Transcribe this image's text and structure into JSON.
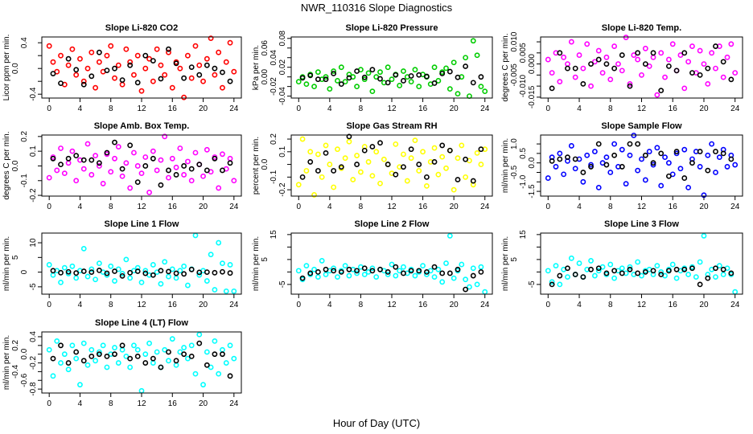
{
  "title": "NWR_110316  Slope Diagnostics",
  "xlabel": "Hour of Day (UTC)",
  "chart_data": [
    {
      "type": "scatter",
      "title": "Slope Li-820 CO2",
      "ylabel": "Licor ppm per min.",
      "color": "#ff0000",
      "xlim": [
        -0.96,
        24.96
      ],
      "ylim": [
        -0.46,
        0.49
      ],
      "xticks": [
        "0",
        "4",
        "8",
        "12",
        "16",
        "20",
        "24"
      ],
      "yticks": [
        -0.4,
        -0.2,
        0.0,
        0.2,
        0.4
      ],
      "ytick_labels": [
        "-0.4",
        "",
        "0.0",
        "",
        "0.4"
      ],
      "series_x_start": 0,
      "series_x_step": 0.5,
      "series": [
        0.35,
        0.1,
        -0.05,
        0.2,
        -0.25,
        0.05,
        0.3,
        -0.1,
        0.15,
        -0.2,
        0.0,
        0.25,
        -0.3,
        0.1,
        -0.05,
        0.2,
        0.35,
        -0.15,
        0.05,
        -0.25,
        0.3,
        0.1,
        -0.1,
        0.2,
        -0.35,
        0.0,
        0.15,
        -0.2,
        0.3,
        0.05,
        -0.1,
        0.25,
        -0.3,
        0.1,
        0.0,
        -0.45,
        0.2,
        -0.15,
        0.35,
        0.05,
        -0.2,
        0.15,
        0.47,
        -0.1,
        0.25,
        -0.3,
        0.1,
        0.4,
        -0.05
      ],
      "hourly_x_start": 0.5,
      "hourly_x_step": 1,
      "hourly": [
        -0.08,
        -0.23,
        0.15,
        -0.02,
        -0.25,
        -0.12,
        0.25,
        -0.03,
        0.0,
        -0.18,
        0.05,
        -0.22,
        0.2,
        0.12,
        -0.16,
        0.3,
        0.08,
        -0.15,
        0.02,
        -0.1,
        0.05,
        0.0,
        -0.06,
        -0.2
      ]
    },
    {
      "type": "scatter",
      "title": "Slope Li-820 Pressure",
      "ylabel": "kPa per min.",
      "color": "#00cc00",
      "xlim": [
        -0.96,
        24.96
      ],
      "ylim": [
        -0.044,
        0.083
      ],
      "xticks": [
        "0",
        "4",
        "8",
        "12",
        "16",
        "20",
        "24"
      ],
      "yticks": [
        -0.04,
        -0.02,
        0.0,
        0.02,
        0.04,
        0.06,
        0.08
      ],
      "ytick_labels": [
        "-0.04",
        "-0.02",
        "0.00",
        "0.02",
        "0.04",
        "0.06",
        "0.08"
      ],
      "series_x_start": 0,
      "series_x_step": 0.5,
      "series": [
        -0.01,
        0.0,
        -0.015,
        0.005,
        -0.02,
        0.01,
        -0.005,
        0.0,
        -0.025,
        0.012,
        -0.008,
        0.02,
        -0.01,
        0.005,
        0.0,
        -0.02,
        0.015,
        -0.005,
        0.008,
        -0.03,
        0.0,
        0.01,
        -0.012,
        0.02,
        -0.005,
        0.005,
        -0.018,
        0.012,
        0.0,
        -0.01,
        0.015,
        -0.02,
        0.005,
        0.0,
        -0.015,
        0.02,
        -0.008,
        0.01,
        0.018,
        -0.025,
        0.03,
        -0.035,
        0.0,
        0.04,
        -0.04,
        0.075,
        0.045,
        -0.02,
        -0.03
      ],
      "hourly_x_start": 0.5,
      "hourly_x_step": 1,
      "hourly": [
        -0.002,
        0.003,
        -0.005,
        -0.005,
        0.007,
        -0.015,
        -0.002,
        0.012,
        -0.001,
        0.015,
        -0.004,
        -0.012,
        0.004,
        -0.008,
        0.002,
        0.004,
        0.001,
        -0.013,
        0.007,
        0.011,
        -0.001,
        0.022,
        -0.012,
        0.0
      ]
    },
    {
      "type": "scatter",
      "title": "Slope Li-820 Temp.",
      "ylabel": "degrees C per min.",
      "color": "#ff00ff",
      "xlim": [
        -0.96,
        24.96
      ],
      "ylim": [
        -0.0154,
        0.0122
      ],
      "xticks": [
        "0",
        "4",
        "8",
        "12",
        "16",
        "20",
        "24"
      ],
      "yticks": [
        -0.015,
        -0.01,
        -0.005,
        0.0,
        0.005,
        0.01
      ],
      "ytick_labels": [
        "-0.015",
        "-0.010",
        "-0.005",
        "0.000",
        "0.005",
        "0.010"
      ],
      "series_x_start": 0,
      "series_x_step": 0.5,
      "series": [
        0.002,
        -0.004,
        0.005,
        -0.008,
        0.003,
        0.0,
        0.01,
        -0.006,
        0.004,
        -0.002,
        0.009,
        -0.01,
        0.001,
        0.006,
        -0.004,
        0.003,
        -0.007,
        0.008,
        0.0,
        -0.003,
        0.012,
        -0.009,
        0.004,
        0.002,
        -0.005,
        0.007,
        -0.001,
        0.003,
        -0.014,
        0.005,
        -0.006,
        0.002,
        0.009,
        -0.003,
        0.004,
        -0.011,
        0.001,
        0.008,
        -0.004,
        0.006,
        0.0,
        -0.009,
        0.005,
        -0.002,
        0.008,
        -0.006,
        0.003,
        0.009,
        -0.004
      ],
      "hourly_x_start": 0.5,
      "hourly_x_step": 1,
      "hourly": [
        -0.011,
        0.005,
        -0.002,
        -0.002,
        -0.009,
        0.0,
        0.002,
        0.0,
        -0.002,
        0.004,
        -0.01,
        0.005,
        0.0,
        0.005,
        -0.012,
        -0.001,
        -0.003,
        0.005,
        -0.004,
        -0.005,
        -0.002,
        0.008,
        0.001,
        -0.007
      ]
    },
    {
      "type": "scatter",
      "title": "Slope Amb. Box Temp.",
      "ylabel": "degrees C per min.",
      "color": "#ff00ff",
      "xlim": [
        -0.96,
        24.96
      ],
      "ylim": [
        -0.205,
        0.21
      ],
      "xticks": [
        "0",
        "4",
        "8",
        "12",
        "16",
        "20",
        "24"
      ],
      "yticks": [
        -0.2,
        -0.1,
        0.0,
        0.1,
        0.2
      ],
      "ytick_labels": [
        "-0.2",
        "-0.1",
        "0.0",
        "0.1",
        "0.2"
      ],
      "series_x_start": 0,
      "series_x_step": 0.5,
      "series": [
        -0.08,
        0.06,
        -0.03,
        0.12,
        -0.05,
        0.02,
        0.1,
        -0.1,
        0.04,
        -0.02,
        0.15,
        -0.06,
        0.07,
        0.0,
        -0.12,
        0.08,
        -0.04,
        0.05,
        0.13,
        -0.07,
        0.02,
        -0.15,
        0.09,
        0.0,
        -0.05,
        0.06,
        -0.18,
        0.1,
        -0.03,
        0.04,
        0.2,
        -0.08,
        0.05,
        -0.01,
        0.12,
        -0.06,
        0.03,
        -0.1,
        0.09,
        0.01,
        -0.07,
        0.11,
        -0.04,
        0.06,
        -0.15,
        0.08,
        -0.02,
        0.05,
        -0.1
      ],
      "hourly_x_start": 0.5,
      "hourly_x_step": 1,
      "hourly": [
        0.05,
        0.01,
        0.05,
        0.07,
        0.04,
        0.04,
        0.02,
        0.09,
        0.16,
        -0.02,
        0.14,
        -0.11,
        0.0,
        0.05,
        -0.13,
        -0.03,
        -0.06,
        0.0,
        -0.02,
        0.01,
        -0.03,
        0.05,
        -0.03,
        0.02
      ]
    },
    {
      "type": "scatter",
      "title": "Slope Gas Stream RH",
      "ylabel": "percent per min.",
      "color": "#ffff00",
      "xlim": [
        -0.96,
        24.96
      ],
      "ylim": [
        -0.25,
        0.232
      ],
      "xticks": [
        "0",
        "4",
        "8",
        "12",
        "16",
        "20",
        "24"
      ],
      "yticks": [
        -0.2,
        -0.1,
        0.0,
        0.1,
        0.2
      ],
      "ytick_labels": [
        "-0.2",
        "-0.1",
        "0.0",
        "0.1",
        "0.2"
      ],
      "series_x_start": 0,
      "series_x_step": 0.5,
      "series": [
        -0.16,
        0.2,
        -0.05,
        0.1,
        -0.24,
        0.08,
        -0.1,
        0.15,
        0.0,
        -0.18,
        0.12,
        -0.03,
        0.05,
        0.18,
        -0.12,
        0.07,
        -0.06,
        0.14,
        0.02,
        -0.09,
        0.1,
        -0.15,
        0.04,
        0.0,
        -0.07,
        0.16,
        -0.02,
        0.08,
        -0.13,
        0.05,
        0.19,
        -0.05,
        0.1,
        -0.17,
        0.02,
        0.13,
        -0.08,
        0.06,
        -0.03,
        0.11,
        -0.2,
        0.05,
        0.15,
        -0.1,
        0.03,
        -0.16,
        0.09,
        0.0,
        0.12
      ],
      "hourly_x_start": 0.5,
      "hourly_x_step": 1,
      "hourly": [
        -0.1,
        0.02,
        -0.05,
        0.09,
        -0.05,
        -0.02,
        0.22,
        0.0,
        0.11,
        0.14,
        0.17,
        0.0,
        -0.08,
        -0.02,
        0.12,
        0.0,
        -0.1,
        0.02,
        0.15,
        0.11,
        -0.12,
        0.04,
        -0.13,
        0.12
      ]
    },
    {
      "type": "scatter",
      "title": "Slope Sample Flow",
      "ylabel": "ml/min per min.",
      "color": "#0000ff",
      "xlim": [
        -0.96,
        24.96
      ],
      "ylim": [
        -1.75,
        1.47
      ],
      "xticks": [
        "0",
        "4",
        "8",
        "12",
        "16",
        "20",
        "24"
      ],
      "yticks": [
        -1.5,
        -1.0,
        -0.5,
        0.0,
        0.5,
        1.0
      ],
      "ytick_labels": [
        "-1.5",
        "-1.0",
        "-0.5",
        "0.0",
        "0.5",
        "1.0"
      ],
      "series_x_start": 0,
      "series_x_step": 0.5,
      "series": [
        -0.8,
        0.3,
        -0.2,
        0.5,
        -0.6,
        0.1,
        0.9,
        -0.3,
        0.2,
        -1.0,
        0.4,
        -0.1,
        0.6,
        -1.3,
        0.0,
        0.3,
        -0.5,
        1.0,
        -0.2,
        0.7,
        -1.1,
        0.4,
        1.45,
        -0.4,
        0.2,
        -0.9,
        0.6,
        -0.1,
        0.8,
        -1.2,
        0.3,
        0.0,
        -0.6,
        0.5,
        -0.3,
        0.7,
        -1.3,
        0.2,
        0.6,
        -0.2,
        -1.7,
        0.4,
        1.0,
        -0.5,
        0.3,
        0.7,
        -0.2,
        0.4,
        -0.1
      ],
      "hourly_x_start": 0.5,
      "hourly_x_step": 1,
      "hourly": [
        0.1,
        0.2,
        0.3,
        0.2,
        -0.5,
        -0.2,
        1.0,
        -0.1,
        0.4,
        -0.2,
        1.0,
        1.0,
        0.4,
        0.0,
        0.5,
        -0.7,
        0.6,
        -0.8,
        0.0,
        0.6,
        -0.4,
        0.6,
        0.5,
        0.2
      ]
    },
    {
      "type": "scatter",
      "title": "Slope Line 1 Flow",
      "ylabel": "ml/min per min.",
      "color": "#00ffff",
      "xlim": [
        -0.96,
        24.96
      ],
      "ylim": [
        -7.5,
        13.3
      ],
      "xticks": [
        "0",
        "4",
        "8",
        "12",
        "16",
        "20",
        "24"
      ],
      "yticks": [
        -5,
        0,
        5,
        10
      ],
      "ytick_labels": [
        "-5",
        "0",
        "5",
        "10"
      ],
      "series_x_start": 0,
      "series_x_step": 0.5,
      "series": [
        2.5,
        -1,
        0.5,
        -3.5,
        1.5,
        -0.5,
        2,
        -2,
        0.5,
        8,
        -1.5,
        1,
        -2.5,
        3,
        0,
        -1,
        2,
        -3,
        1,
        -0.5,
        4.3,
        -2,
        0.5,
        1.5,
        -3.5,
        0.5,
        -1,
        2.5,
        0,
        -4,
        3.5,
        -1.5,
        1,
        -2,
        0.5,
        2,
        -4.5,
        1,
        12.5,
        -1,
        0.5,
        -3,
        6,
        -6,
        10,
        3,
        -6.5,
        2.5,
        -6.5
      ],
      "hourly_x_start": 0.5,
      "hourly_x_step": 1,
      "hourly": [
        0.5,
        -0.2,
        0.1,
        -0.3,
        0.3,
        0.0,
        0.6,
        -0.4,
        0.3,
        -1.3,
        -0.2,
        0.3,
        -0.4,
        -1.0,
        0.5,
        0.2,
        -0.4,
        -0.6,
        0.9,
        -0.1,
        0.0,
        -0.2,
        0.1,
        -0.3
      ]
    },
    {
      "type": "scatter",
      "title": "Slope Line 2 Flow",
      "ylabel": "ml/min per min.",
      "color": "#00ffff",
      "xlim": [
        -0.96,
        24.96
      ],
      "ylim": [
        -8.9,
        15.6
      ],
      "xticks": [
        "0",
        "4",
        "8",
        "12",
        "16",
        "20",
        "24"
      ],
      "yticks": [
        -5,
        0,
        5,
        10,
        15
      ],
      "ytick_labels": [
        "-5",
        "",
        "5",
        "",
        "15"
      ],
      "series_x_start": 0,
      "series_x_step": 0.5,
      "series": [
        0.5,
        -3,
        2.5,
        -1,
        1,
        -2,
        4.5,
        -1,
        0.5,
        1.5,
        -2,
        0.5,
        2.5,
        -1.5,
        1,
        -0.5,
        2,
        -1,
        0,
        1.5,
        -2,
        1,
        0.5,
        -1,
        3,
        -1.5,
        0.5,
        2,
        -0.5,
        1,
        -1.5,
        0,
        2.5,
        -1,
        0.5,
        -2,
        1,
        -4,
        3.5,
        14.5,
        -2.5,
        0.5,
        3,
        -3,
        -6,
        1.5,
        -5,
        2,
        -8
      ],
      "hourly_x_start": 0.5,
      "hourly_x_step": 1,
      "hourly": [
        -2.5,
        -0.5,
        0,
        1,
        0.5,
        0,
        1,
        0.5,
        1.5,
        0.5,
        1,
        0,
        2,
        -0.5,
        0.5,
        0.5,
        0,
        2,
        -0.5,
        -0.5,
        1,
        -7,
        -1.5,
        0
      ]
    },
    {
      "type": "scatter",
      "title": "Slope Line 3 Flow",
      "ylabel": "ml/min per min.",
      "color": "#00ffff",
      "xlim": [
        -0.96,
        24.96
      ],
      "ylim": [
        -8.9,
        15.6
      ],
      "xticks": [
        "0",
        "4",
        "8",
        "12",
        "16",
        "20",
        "24"
      ],
      "yticks": [
        -5,
        0,
        5,
        10,
        15
      ],
      "ytick_labels": [
        "-5",
        "",
        "5",
        "",
        "15"
      ],
      "series_x_start": 0,
      "series_x_step": 0.5,
      "series": [
        0.5,
        -4,
        2.5,
        -5,
        1,
        -2,
        5.5,
        -1,
        3.5,
        -2,
        1,
        4.5,
        -1.5,
        0.5,
        2,
        -1,
        3,
        -2.5,
        0.5,
        1.5,
        -0.5,
        2,
        -1,
        4,
        -1.5,
        0.5,
        1,
        -1,
        2.5,
        0,
        -1.5,
        1,
        3,
        -2.5,
        0.5,
        1.5,
        -1,
        2,
        -2,
        4,
        14.5,
        -1,
        1,
        -2,
        2.5,
        -1,
        1.5,
        -1,
        -8
      ],
      "hourly_x_start": 0.5,
      "hourly_x_step": 1,
      "hourly": [
        -5,
        -1.5,
        1.5,
        -1,
        -2,
        1,
        1.5,
        -0.5,
        0.5,
        -0.5,
        1,
        -0.5,
        0,
        0.5,
        -1,
        0.5,
        1,
        1,
        1.5,
        -5,
        -2.5,
        1.5,
        1,
        -0.5
      ]
    },
    {
      "type": "scatter",
      "title": "Slope Line 4 (LT) Flow",
      "ylabel": "ml/min per min.",
      "color": "#00ffff",
      "xlim": [
        -0.96,
        24.96
      ],
      "ylim": [
        -0.89,
        0.51
      ],
      "xticks": [
        "0",
        "4",
        "8",
        "12",
        "16",
        "20",
        "24"
      ],
      "yticks": [
        -0.8,
        -0.6,
        -0.4,
        -0.2,
        0.0,
        0.2,
        0.4
      ],
      "ytick_labels": [
        "-0.8",
        "-0.6",
        "-0.4",
        "-0.2",
        "0.0",
        "0.2",
        "0.4"
      ],
      "series_x_start": 0,
      "series_x_step": 0.5,
      "series": [
        0.1,
        -0.5,
        0.3,
        -0.2,
        0.0,
        -0.35,
        0.2,
        -0.1,
        -0.7,
        0.25,
        -0.25,
        0.1,
        -0.15,
        0.05,
        0.2,
        -0.3,
        0.0,
        0.15,
        -0.2,
        0.1,
        -0.05,
        -0.3,
        0.2,
        0.1,
        -0.84,
        0.0,
        0.25,
        -0.2,
        0.05,
        -0.3,
        0.1,
        -0.15,
        0.35,
        -0.25,
        0.05,
        0.15,
        -0.1,
        0.2,
        -0.45,
        0.45,
        -0.7,
        0.05,
        -0.3,
        0.3,
        -0.45,
        0.1,
        -0.2,
        0.2,
        -0.1
      ],
      "hourly_x_start": 0.5,
      "hourly_x_step": 1,
      "hourly": [
        -0.1,
        0.2,
        -0.2,
        0.05,
        -0.15,
        -0.05,
        0.0,
        -0.05,
        0.0,
        0.2,
        -0.1,
        -0.05,
        -0.2,
        -0.1,
        -0.3,
        0.05,
        -0.15,
        0.0,
        -0.05,
        0.25,
        -0.25,
        0.0,
        0.0,
        -0.5
      ]
    }
  ]
}
